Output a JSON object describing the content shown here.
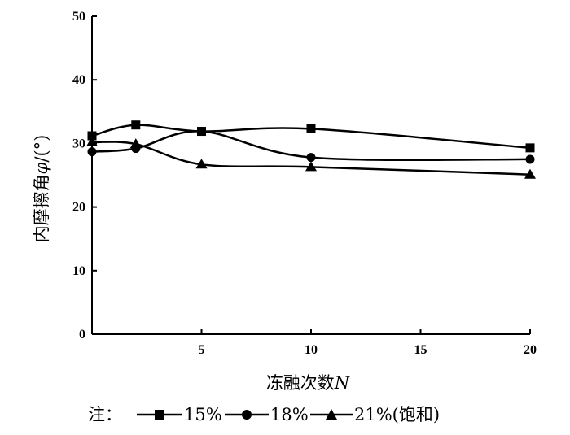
{
  "chart_data": {
    "type": "line",
    "xlabel_text": "冻融次数",
    "xlabel_var": "N",
    "ylabel_text": "内摩擦角",
    "ylabel_var": "φ",
    "ylabel_unit": "/(°)",
    "xlim": [
      0,
      20
    ],
    "ylim": [
      0,
      50
    ],
    "xticks": [
      5,
      10,
      15,
      20
    ],
    "yticks": [
      0,
      10,
      20,
      30,
      40,
      50
    ],
    "grid": false,
    "legend_prefix": "注：",
    "series": [
      {
        "name": "15%",
        "marker": "square",
        "x": [
          0,
          2,
          5,
          10,
          20
        ],
        "y": [
          31.2,
          32.9,
          31.9,
          32.3,
          29.3
        ]
      },
      {
        "name": "18%",
        "marker": "circle",
        "x": [
          0,
          2,
          5,
          10,
          20
        ],
        "y": [
          28.7,
          29.2,
          31.9,
          27.8,
          27.5
        ]
      },
      {
        "name": "21%(饱和)",
        "marker": "triangle",
        "x": [
          0,
          2,
          5,
          10,
          20
        ],
        "y": [
          30.2,
          29.9,
          26.7,
          26.3,
          25.1
        ]
      }
    ]
  }
}
